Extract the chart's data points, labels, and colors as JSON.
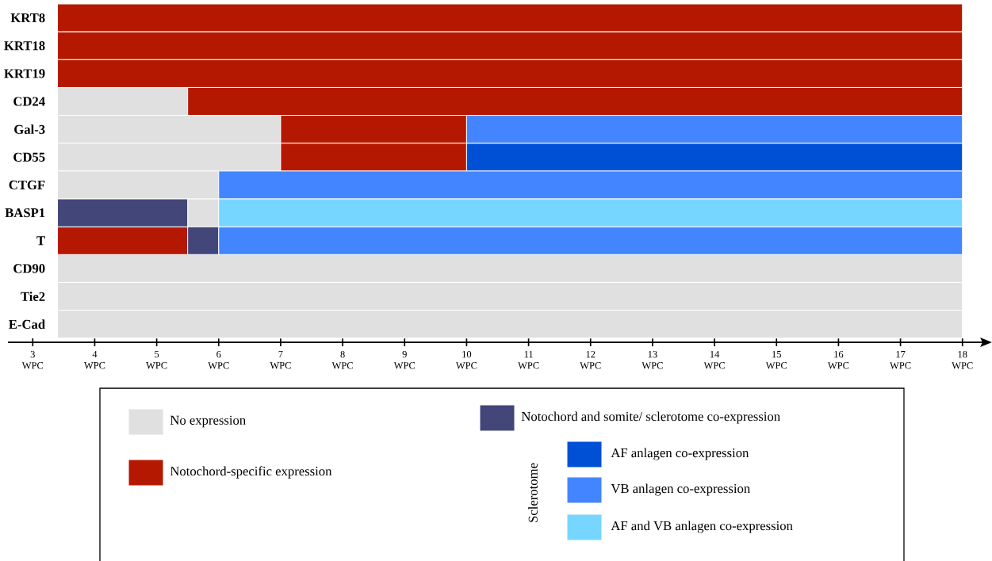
{
  "chart_data": {
    "type": "bar",
    "orientation": "horizontal",
    "legend": "bottom",
    "categories": [
      "KRT8",
      "KRT18",
      "KRT19",
      "CD24",
      "Gal-3",
      "CD55",
      "CTGF",
      "BASP1",
      "T",
      "CD90",
      "Tie2",
      "E-Cad"
    ],
    "series": [
      {
        "name": "No expression",
        "color": "#e0e0e0",
        "base": [
          null,
          null,
          null,
          3.4,
          3.4,
          3.4,
          3.4,
          5.5,
          null,
          3.4,
          3.4,
          3.4
        ],
        "values": [
          null,
          null,
          null,
          2.1,
          3.6,
          3.6,
          2.6,
          0.5,
          null,
          14.6,
          14.6,
          14.6
        ]
      },
      {
        "name": "Notochord-specific expression",
        "color": "#b51800",
        "base": [
          3.4,
          3.4,
          3.4,
          5.5,
          7,
          7,
          null,
          null,
          3.4,
          null,
          null,
          null
        ],
        "values": [
          14.6,
          14.6,
          14.6,
          12.5,
          3,
          3,
          null,
          null,
          2.1,
          null,
          null,
          null
        ]
      },
      {
        "name": "Notochord and somite/ sclerotome co-expression",
        "color": "#434679",
        "base": [
          null,
          null,
          null,
          null,
          null,
          null,
          null,
          3.4,
          5.5,
          null,
          null,
          null
        ],
        "values": [
          null,
          null,
          null,
          null,
          null,
          null,
          null,
          2.1,
          0.5,
          null,
          null,
          null
        ]
      },
      {
        "name": "AF anlagen co-expression",
        "color": "#0050d6",
        "base": [
          null,
          null,
          null,
          null,
          null,
          10,
          null,
          null,
          null,
          null,
          null,
          null
        ],
        "values": [
          null,
          null,
          null,
          null,
          null,
          8,
          null,
          null,
          null,
          null,
          null,
          null
        ]
      },
      {
        "name": "VB anlagen co-expression",
        "color": "#4385ff",
        "base": [
          null,
          null,
          null,
          null,
          10,
          null,
          6,
          null,
          6,
          null,
          null,
          null
        ],
        "values": [
          null,
          null,
          null,
          null,
          8,
          null,
          12,
          null,
          12,
          null,
          null,
          null
        ]
      },
      {
        "name": "AF and VB anlagen co-expression",
        "color": "#76d6ff",
        "base": [
          null,
          null,
          null,
          null,
          null,
          null,
          null,
          6,
          null,
          null,
          null,
          null
        ],
        "values": [
          null,
          null,
          null,
          null,
          null,
          null,
          null,
          12,
          null,
          null,
          null,
          null
        ]
      }
    ],
    "xlim": [
      2.6,
      18.4
    ],
    "xticks": [
      {
        "value": 3,
        "label": "3 WPC"
      },
      {
        "value": 4,
        "label": "4 WPC"
      },
      {
        "value": 5,
        "label": "5 WPC"
      },
      {
        "value": 6,
        "label": "6 WPC"
      },
      {
        "value": 7,
        "label": "7 WPC"
      },
      {
        "value": 8,
        "label": "8 WPC"
      },
      {
        "value": 9,
        "label": "9 WPC"
      },
      {
        "value": 10,
        "label": "10 WPC"
      },
      {
        "value": 11,
        "label": "11 WPC"
      },
      {
        "value": 12,
        "label": "12 WPC"
      },
      {
        "value": 13,
        "label": "13 WPC"
      },
      {
        "value": 14,
        "label": "14 WPC"
      },
      {
        "value": 15,
        "label": "15 WPC"
      },
      {
        "value": 16,
        "label": "16 WPC"
      },
      {
        "value": 17,
        "label": "17 WPC"
      },
      {
        "value": 18,
        "label": "18 WPC"
      }
    ],
    "annotations": [
      "Sclerotome"
    ]
  }
}
